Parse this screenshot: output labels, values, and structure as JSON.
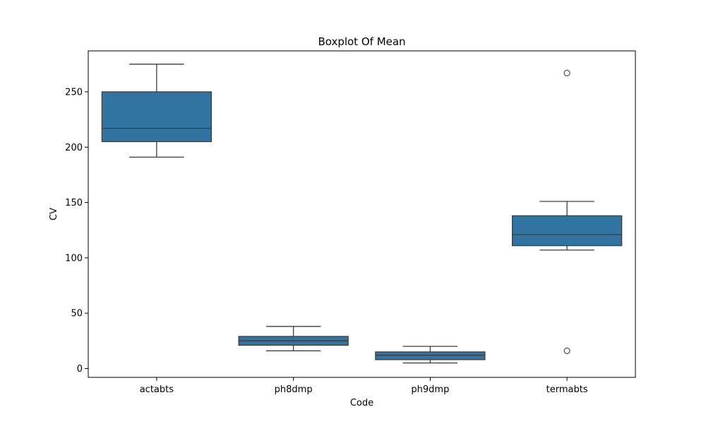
{
  "chart_data": {
    "type": "boxplot",
    "title": "Boxplot Of Mean",
    "xlabel": "Code",
    "ylabel": "CV",
    "ylim": [
      -8,
      287
    ],
    "yticks": [
      0,
      50,
      100,
      150,
      200,
      250
    ],
    "categories": [
      "actabts",
      "ph8dmp",
      "ph9dmp",
      "termabts"
    ],
    "boxes": [
      {
        "name": "actabts",
        "whisker_low": 191,
        "q1": 205,
        "median": 217,
        "q3": 250,
        "whisker_high": 275,
        "outliers": []
      },
      {
        "name": "ph8dmp",
        "whisker_low": 16,
        "q1": 21,
        "median": 25,
        "q3": 29,
        "whisker_high": 38,
        "outliers": []
      },
      {
        "name": "ph9dmp",
        "whisker_low": 5,
        "q1": 8,
        "median": 12,
        "q3": 15,
        "whisker_high": 20,
        "outliers": []
      },
      {
        "name": "termabts",
        "whisker_low": 107,
        "q1": 111,
        "median": 121,
        "q3": 138,
        "whisker_high": 151,
        "outliers": [
          267,
          16
        ]
      }
    ],
    "colors": {
      "box_fill": "#3274a1",
      "line": "#3d3d3d",
      "axis": "#000000"
    }
  }
}
